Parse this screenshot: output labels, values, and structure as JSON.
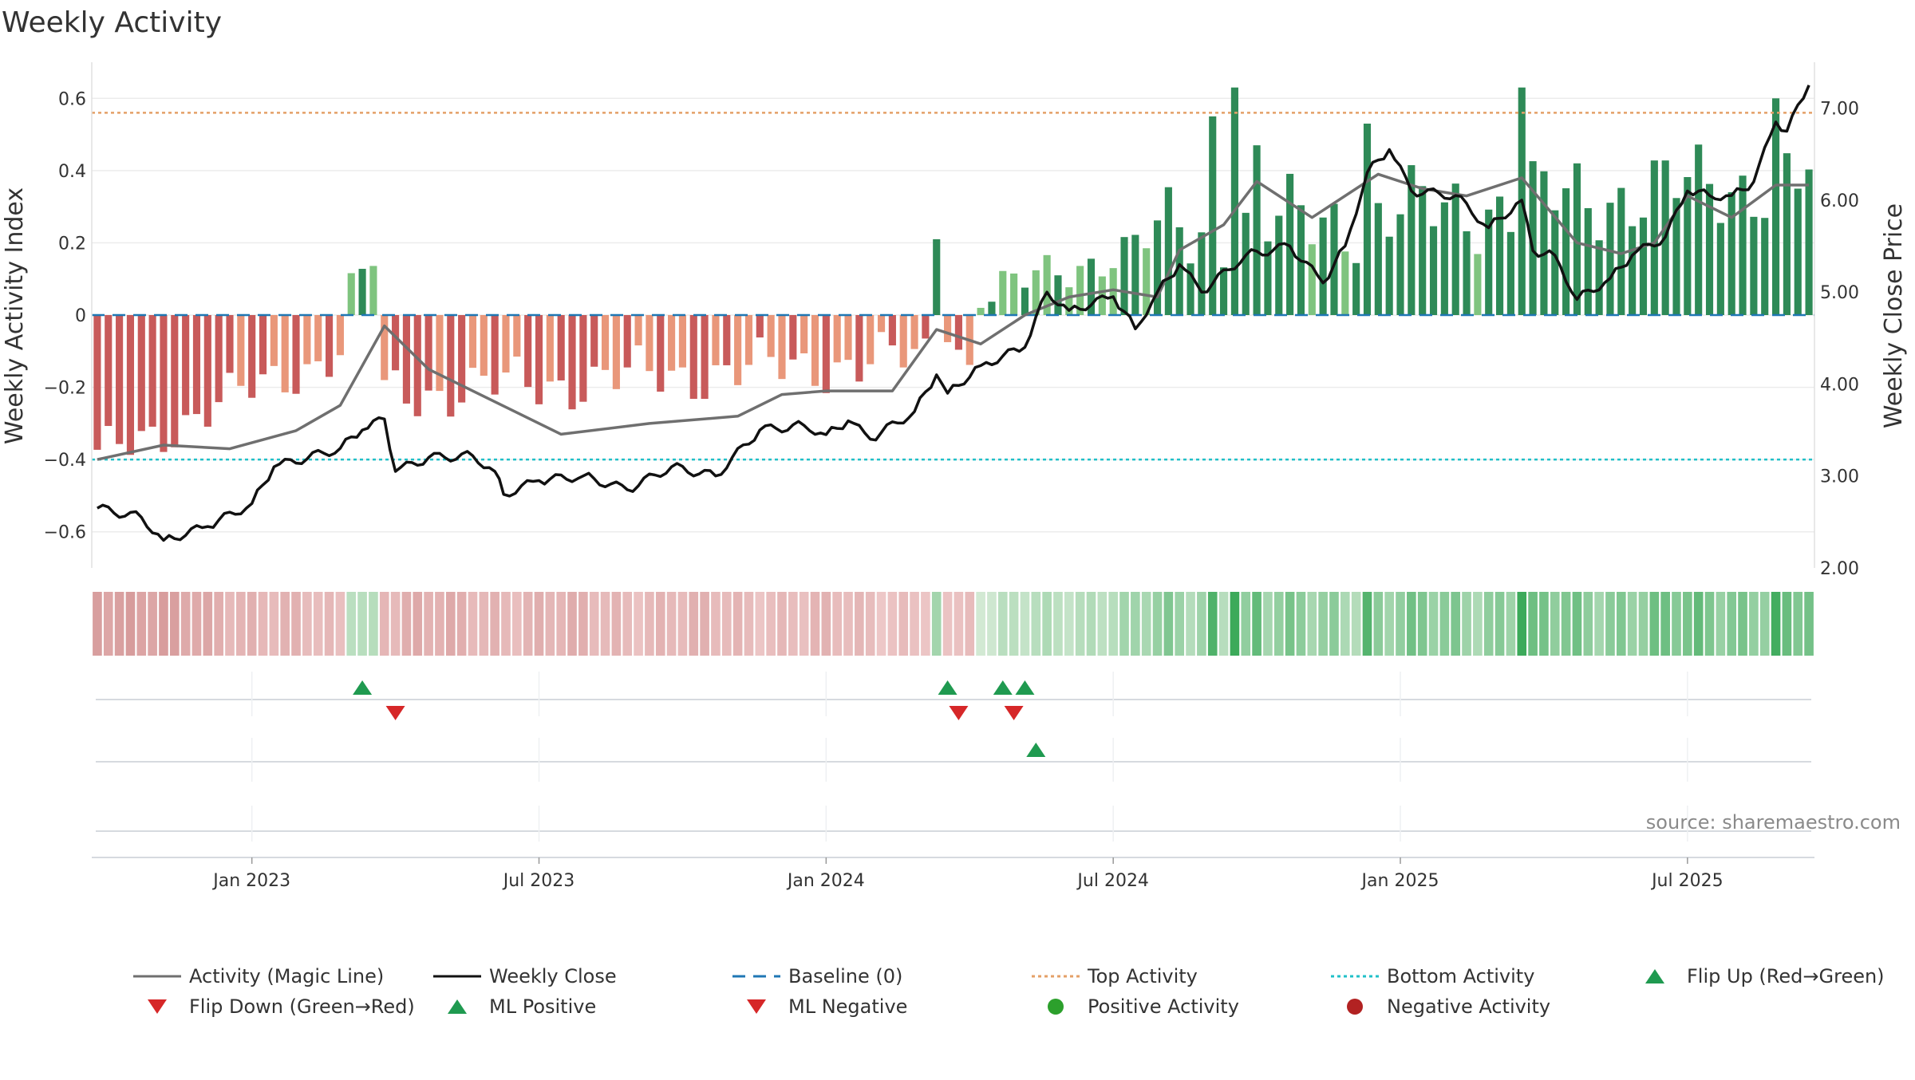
{
  "chart_data": {
    "type": "bar",
    "title": "Weekly Activity",
    "source_note": "source: sharemaestro.com",
    "ylabel_left": "Weekly Activity Index",
    "ylabel_right": "Weekly Close Price",
    "ylim_left": [
      -0.7,
      0.7
    ],
    "ylim_right": [
      2.0,
      7.5
    ],
    "yticks_left": [
      {
        "value": 0.6,
        "label": "0.6"
      },
      {
        "value": 0.4,
        "label": "0.4"
      },
      {
        "value": 0.2,
        "label": "0.2"
      },
      {
        "value": 0.0,
        "label": "0"
      },
      {
        "value": -0.2,
        "label": "−0.2"
      },
      {
        "value": -0.4,
        "label": "−0.4"
      },
      {
        "value": -0.6,
        "label": "−0.6"
      }
    ],
    "yticks_right": [
      {
        "value": 7.0,
        "label": "7.00"
      },
      {
        "value": 6.0,
        "label": "6.00"
      },
      {
        "value": 5.0,
        "label": "5.00"
      },
      {
        "value": 4.0,
        "label": "4.00"
      },
      {
        "value": 3.0,
        "label": "3.00"
      },
      {
        "value": 2.0,
        "label": "2.00"
      }
    ],
    "x_ticks": [
      {
        "week": 14,
        "label": "Jan 2023"
      },
      {
        "week": 40,
        "label": "Jul 2023"
      },
      {
        "week": 66,
        "label": "Jan 2024"
      },
      {
        "week": 92,
        "label": "Jul 2024"
      },
      {
        "week": 118,
        "label": "Jan 2025"
      },
      {
        "week": 144,
        "label": "Jul 2025"
      }
    ],
    "weeks": 156,
    "top_activity": 0.56,
    "bottom_activity": -0.4,
    "activity_segments": [
      {
        "start": 0,
        "end": 23,
        "from": -0.4,
        "to": -0.1,
        "wiggle": 0.08
      },
      {
        "start": 23,
        "end": 26,
        "from": 0.1,
        "to": 0.14,
        "wiggle": 0.02
      },
      {
        "start": 26,
        "end": 76,
        "from": -0.22,
        "to": -0.12,
        "wiggle": 0.09
      },
      {
        "start": 76,
        "end": 77,
        "from": 0.21,
        "to": 0.21,
        "wiggle": 0
      },
      {
        "start": 77,
        "end": 80,
        "from": -0.05,
        "to": -0.14,
        "wiggle": 0.03
      },
      {
        "start": 80,
        "end": 96,
        "from": 0.05,
        "to": 0.2,
        "wiggle": 0.07
      },
      {
        "start": 96,
        "end": 156,
        "from": 0.22,
        "to": 0.38,
        "wiggle": 0.14
      }
    ],
    "activity_spikes": [
      {
        "week": 101,
        "value": 0.55
      },
      {
        "week": 103,
        "value": 0.63
      },
      {
        "week": 105,
        "value": 0.47
      },
      {
        "week": 115,
        "value": 0.53
      },
      {
        "week": 129,
        "value": 0.63
      },
      {
        "week": 152,
        "value": 0.6
      }
    ],
    "magic_line": [
      {
        "week": 0,
        "value": -0.4
      },
      {
        "week": 6,
        "value": -0.36
      },
      {
        "week": 12,
        "value": -0.37
      },
      {
        "week": 18,
        "value": -0.32
      },
      {
        "week": 22,
        "value": -0.25
      },
      {
        "week": 26,
        "value": -0.03
      },
      {
        "week": 30,
        "value": -0.15
      },
      {
        "week": 36,
        "value": -0.24
      },
      {
        "week": 42,
        "value": -0.33
      },
      {
        "week": 50,
        "value": -0.3
      },
      {
        "week": 58,
        "value": -0.28
      },
      {
        "week": 62,
        "value": -0.22
      },
      {
        "week": 66,
        "value": -0.21
      },
      {
        "week": 72,
        "value": -0.21
      },
      {
        "week": 76,
        "value": -0.04
      },
      {
        "week": 80,
        "value": -0.08
      },
      {
        "week": 84,
        "value": 0.0
      },
      {
        "week": 88,
        "value": 0.05
      },
      {
        "week": 92,
        "value": 0.07
      },
      {
        "week": 96,
        "value": 0.05
      },
      {
        "week": 98,
        "value": 0.18
      },
      {
        "week": 102,
        "value": 0.25
      },
      {
        "week": 105,
        "value": 0.37
      },
      {
        "week": 110,
        "value": 0.27
      },
      {
        "week": 116,
        "value": 0.39
      },
      {
        "week": 120,
        "value": 0.35
      },
      {
        "week": 124,
        "value": 0.33
      },
      {
        "week": 129,
        "value": 0.38
      },
      {
        "week": 134,
        "value": 0.2
      },
      {
        "week": 138,
        "value": 0.17
      },
      {
        "week": 141,
        "value": 0.2
      },
      {
        "week": 144,
        "value": 0.33
      },
      {
        "week": 148,
        "value": 0.27
      },
      {
        "week": 152,
        "value": 0.36
      },
      {
        "week": 155,
        "value": 0.36
      }
    ],
    "weekly_close": [
      {
        "week": 0,
        "value": 2.65
      },
      {
        "week": 4,
        "value": 2.55
      },
      {
        "week": 6,
        "value": 2.3
      },
      {
        "week": 10,
        "value": 2.45
      },
      {
        "week": 14,
        "value": 2.7
      },
      {
        "week": 16,
        "value": 3.1
      },
      {
        "week": 22,
        "value": 3.3
      },
      {
        "week": 24,
        "value": 3.5
      },
      {
        "week": 26,
        "value": 3.62
      },
      {
        "week": 27,
        "value": 3.05
      },
      {
        "week": 30,
        "value": 3.2
      },
      {
        "week": 34,
        "value": 3.22
      },
      {
        "week": 36,
        "value": 3.05
      },
      {
        "week": 36.8,
        "value": 2.8
      },
      {
        "week": 40,
        "value": 2.95
      },
      {
        "week": 44,
        "value": 3.0
      },
      {
        "week": 48,
        "value": 2.85
      },
      {
        "week": 52,
        "value": 3.1
      },
      {
        "week": 56,
        "value": 3.0
      },
      {
        "week": 60,
        "value": 3.5
      },
      {
        "week": 64,
        "value": 3.55
      },
      {
        "week": 66,
        "value": 3.45
      },
      {
        "week": 68,
        "value": 3.6
      },
      {
        "week": 70,
        "value": 3.4
      },
      {
        "week": 74,
        "value": 3.7
      },
      {
        "week": 76,
        "value": 4.1
      },
      {
        "week": 77,
        "value": 3.9
      },
      {
        "week": 80,
        "value": 4.2
      },
      {
        "week": 84,
        "value": 4.4
      },
      {
        "week": 86,
        "value": 5.0
      },
      {
        "week": 88,
        "value": 4.8
      },
      {
        "week": 92,
        "value": 4.95
      },
      {
        "week": 94,
        "value": 4.6
      },
      {
        "week": 96,
        "value": 5.0
      },
      {
        "week": 98,
        "value": 5.3
      },
      {
        "week": 100,
        "value": 5.0
      },
      {
        "week": 104,
        "value": 5.4
      },
      {
        "week": 108,
        "value": 5.5
      },
      {
        "week": 111,
        "value": 5.1
      },
      {
        "week": 113,
        "value": 5.5
      },
      {
        "week": 115,
        "value": 6.3
      },
      {
        "week": 117,
        "value": 6.55
      },
      {
        "week": 119,
        "value": 6.1
      },
      {
        "week": 123,
        "value": 6.05
      },
      {
        "week": 126,
        "value": 5.7
      },
      {
        "week": 129,
        "value": 6.0
      },
      {
        "week": 130,
        "value": 5.45
      },
      {
        "week": 132,
        "value": 5.4
      },
      {
        "week": 134,
        "value": 4.92
      },
      {
        "week": 137,
        "value": 5.15
      },
      {
        "week": 139,
        "value": 5.4
      },
      {
        "week": 142,
        "value": 5.6
      },
      {
        "week": 144,
        "value": 6.1
      },
      {
        "week": 146,
        "value": 6.05
      },
      {
        "week": 148,
        "value": 6.05
      },
      {
        "week": 150,
        "value": 6.2
      },
      {
        "week": 152,
        "value": 6.85
      },
      {
        "week": 153,
        "value": 6.75
      },
      {
        "week": 155,
        "value": 7.25
      }
    ],
    "flip_up": [
      24,
      77,
      82,
      84
    ],
    "flip_down": [
      27,
      78,
      83
    ],
    "ml_positive": [
      85
    ],
    "ml_negative": [],
    "legend": [
      {
        "label": "Activity (Magic Line)",
        "kind": "line",
        "color": "#6f6f6f",
        "dash": "solid"
      },
      {
        "label": "Weekly Close",
        "kind": "line",
        "color": "#111111",
        "dash": "solid"
      },
      {
        "label": "Baseline (0)",
        "kind": "line",
        "color": "#1f77b4",
        "dash": "dashed"
      },
      {
        "label": "Top Activity",
        "kind": "line",
        "color": "#e4a067",
        "dash": "dotted"
      },
      {
        "label": "Bottom Activity",
        "kind": "line",
        "color": "#20c0c8",
        "dash": "dotted"
      },
      {
        "label": "Flip Up (Red→Green)",
        "kind": "tri-up",
        "color": "#1f9a50"
      },
      {
        "label": "Flip Down (Green→Red)",
        "kind": "tri-down",
        "color": "#d62728"
      },
      {
        "label": "ML Positive",
        "kind": "tri-up",
        "color": "#1f9a50"
      },
      {
        "label": "ML Negative",
        "kind": "tri-down",
        "color": "#d62728"
      },
      {
        "label": "Positive Activity",
        "kind": "dot",
        "color": "#2ca02c"
      },
      {
        "label": "Negative Activity",
        "kind": "dot",
        "color": "#b22222"
      }
    ],
    "colors": {
      "pos_dark": "#2e8a57",
      "pos_light": "#7fc47f",
      "neg_dark": "#c85a5a",
      "neg_light": "#e9977a",
      "magic_line": "#6f6f6f",
      "close_line": "#111111",
      "baseline": "#1f77b4",
      "top": "#e4a067",
      "bottom": "#20c0c8",
      "flip_up": "#1f9a50",
      "flip_down": "#d62728"
    }
  }
}
